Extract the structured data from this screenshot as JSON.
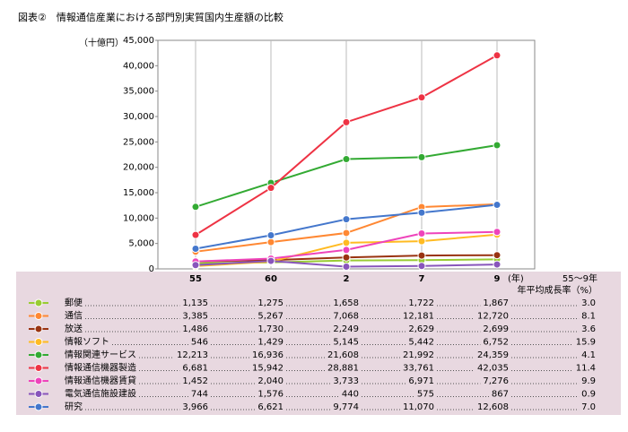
{
  "chart_data": {
    "type": "line",
    "title": "図表②　情報通信産業における部門別実質国内生産額の比較",
    "y_label": "（十億円）",
    "x_unit": "(年)",
    "growth_header": [
      "55～9年",
      "年平均成長率（%）"
    ],
    "categories": [
      "55",
      "60",
      "2",
      "7",
      "9"
    ],
    "ylim": [
      0,
      45000
    ],
    "yticks": [
      0,
      {
        "value": 5000,
        "label": "5,000"
      },
      {
        "value": 10000,
        "label": "10,000"
      },
      {
        "value": 15000,
        "label": "15,000"
      },
      {
        "value": 20000,
        "label": "20,000"
      },
      {
        "value": 25000,
        "label": "25,000"
      },
      {
        "value": 30000,
        "label": "30,000"
      },
      {
        "value": 35000,
        "label": "35,000"
      },
      {
        "value": 40000,
        "label": "40,000"
      },
      {
        "value": 45000,
        "label": "45,000"
      }
    ],
    "series": [
      {
        "name": "郵便",
        "color": "#99cc33",
        "values": [
          1135,
          1275,
          1658,
          1722,
          1867
        ],
        "value_labels": [
          "1,135",
          "1,275",
          "1,658",
          "1,722",
          "1,867"
        ],
        "growth_rate": "3.0"
      },
      {
        "name": "通信",
        "color": "#ff8833",
        "values": [
          3385,
          5267,
          7068,
          12181,
          12720
        ],
        "value_labels": [
          "3,385",
          "5,267",
          "7,068",
          "12,181",
          "12,720"
        ],
        "growth_rate": "8.1"
      },
      {
        "name": "放送",
        "color": "#993311",
        "values": [
          1486,
          1730,
          2249,
          2629,
          2699
        ],
        "value_labels": [
          "1,486",
          "1,730",
          "2,249",
          "2,629",
          "2,699"
        ],
        "growth_rate": "3.6"
      },
      {
        "name": "情報ソフト",
        "color": "#ffbb22",
        "values": [
          546,
          1429,
          5145,
          5442,
          6752
        ],
        "value_labels": [
          "546",
          "1,429",
          "5,145",
          "5,442",
          "6,752"
        ],
        "growth_rate": "15.9"
      },
      {
        "name": "情報関連サービス",
        "color": "#33aa33",
        "values": [
          12213,
          16936,
          21608,
          21992,
          24359
        ],
        "value_labels": [
          "12,213",
          "16,936",
          "21,608",
          "21,992",
          "24,359"
        ],
        "growth_rate": "4.1"
      },
      {
        "name": "情報通信機器製造",
        "color": "#ee3344",
        "values": [
          6681,
          15942,
          28881,
          33761,
          42035
        ],
        "value_labels": [
          "6,681",
          "15,942",
          "28,881",
          "33,761",
          "42,035"
        ],
        "growth_rate": "11.4"
      },
      {
        "name": "情報通信機器賃貸",
        "color": "#ee44bb",
        "values": [
          1452,
          2040,
          3733,
          6971,
          7276
        ],
        "value_labels": [
          "1,452",
          "2,040",
          "3,733",
          "6,971",
          "7,276"
        ],
        "growth_rate": "9.9"
      },
      {
        "name": "電気通信施設建設",
        "color": "#8855bb",
        "values": [
          744,
          1576,
          440,
          575,
          867
        ],
        "value_labels": [
          "744",
          "1,576",
          "440",
          "575",
          "867"
        ],
        "growth_rate": "0.9"
      },
      {
        "name": "研究",
        "color": "#4477cc",
        "values": [
          3966,
          6621,
          9774,
          11070,
          12608
        ],
        "value_labels": [
          "3,966",
          "6,621",
          "9,774",
          "11,070",
          "12,608"
        ],
        "growth_rate": "7.0"
      }
    ]
  }
}
